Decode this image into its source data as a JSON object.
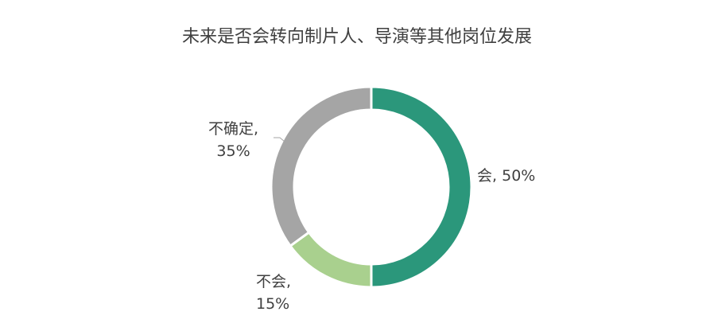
{
  "chart_data": {
    "type": "pie",
    "donut": true,
    "title": "未来是否会转向制片人、导演等其他岗位发展",
    "slices": [
      {
        "label": "会",
        "value": 50,
        "value_label": "50%",
        "color": "#2b977b"
      },
      {
        "label": "不会",
        "value": 15,
        "value_label": "15%",
        "color": "#a9d08e"
      },
      {
        "label": "不确定",
        "value": 35,
        "value_label": "35%",
        "color": "#a5a5a5"
      }
    ],
    "legend": "none",
    "data_labels": "outside"
  }
}
